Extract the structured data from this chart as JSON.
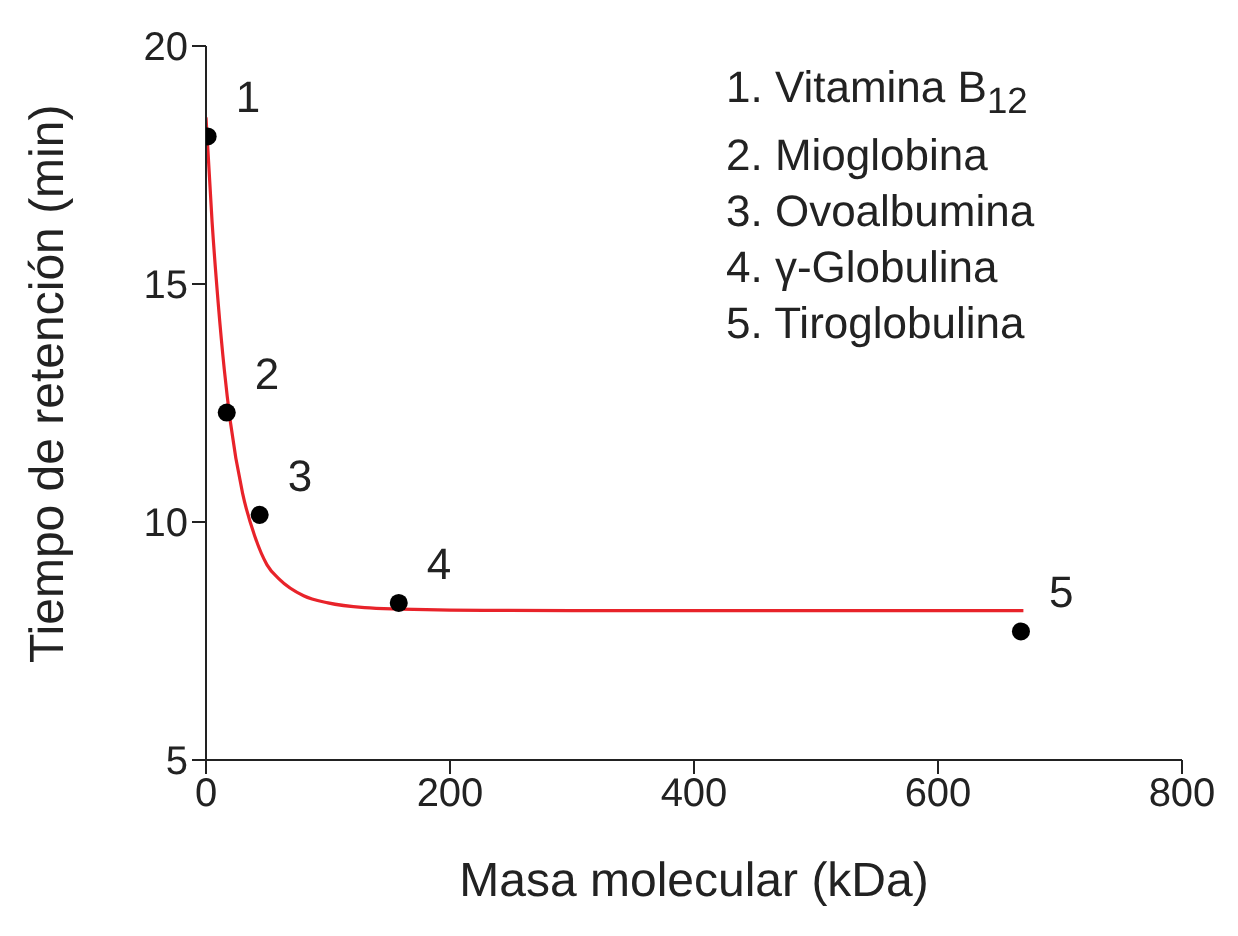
{
  "chart_data": {
    "type": "scatter",
    "xlabel": "Masa molecular (kDa)",
    "ylabel": "Tiempo de retención (min)",
    "xlim": [
      0,
      800
    ],
    "xticks": [
      0,
      200,
      400,
      600,
      800
    ],
    "ylim": [
      5,
      20
    ],
    "yticks": [
      5,
      10,
      15,
      20
    ],
    "series": [
      {
        "color": "#000000",
        "marker": "circle",
        "x": [
          1.35,
          17,
          44,
          158,
          668
        ],
        "values": [
          18.1,
          12.3,
          10.15,
          8.3,
          7.7
        ]
      },
      {
        "type": "line",
        "color": "#e8232a",
        "marker": "none",
        "line_style": "solid",
        "x": [
          0,
          5,
          10,
          15,
          20,
          30,
          40,
          50,
          60,
          80,
          100,
          130,
          160,
          200,
          300,
          400,
          500,
          600,
          670
        ],
        "values": [
          18.5,
          16.3,
          14.6,
          13.2,
          12.1,
          10.6,
          9.7,
          9.1,
          8.8,
          8.45,
          8.3,
          8.2,
          8.17,
          8.15,
          8.14,
          8.14,
          8.14,
          8.14,
          8.14
        ]
      }
    ],
    "annotations": [
      {
        "text": "1",
        "x": 1.35,
        "y": 18.1
      },
      {
        "text": "2",
        "x": 17,
        "y": 12.3
      },
      {
        "text": "3",
        "x": 44,
        "y": 10.15
      },
      {
        "text": "4",
        "x": 158,
        "y": 8.3
      },
      {
        "text": "5",
        "x": 668,
        "y": 7.7
      },
      "1. Vitamina B$_{12}$",
      "2. Mioglobina",
      "3. Ovoalbumina",
      "4. γ-Globulina",
      "5. Tiroglobulina"
    ]
  }
}
